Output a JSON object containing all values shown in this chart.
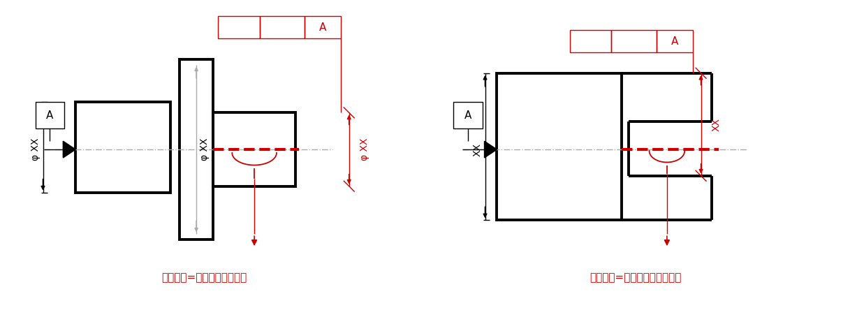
{
  "fig_width": 12.37,
  "fig_height": 4.44,
  "bg_color": "#ffffff",
  "black": "#000000",
  "red": "#cc0000",
  "gray": "#aaaaaa",
  "label1": "幾何公差=右側円筒の中心線",
  "label2": "幾何公差=右側形体の中心平面",
  "datum_label": "A",
  "text_XX": "XX",
  "text_phiXX": "φ XX"
}
